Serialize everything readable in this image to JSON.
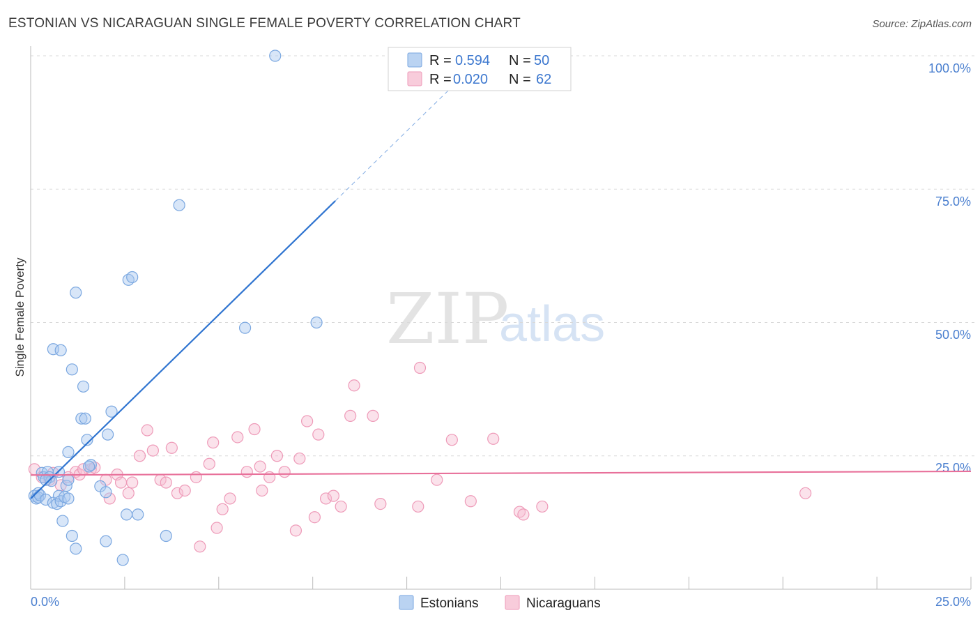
{
  "header": {
    "title": "ESTONIAN VS NICARAGUAN SINGLE FEMALE POVERTY CORRELATION CHART",
    "source": "Source: ZipAtlas.com"
  },
  "watermark": {
    "zip": "ZIP",
    "atlas": "atlas"
  },
  "legend_top": {
    "rows": [
      {
        "r_label": "R =",
        "r_value": "0.594",
        "n_label": "N =",
        "n_value": "50"
      },
      {
        "r_label": "R =",
        "r_value": "0.020",
        "n_label": "N =",
        "n_value": "62"
      }
    ]
  },
  "legend_bottom": {
    "items": [
      "Estonians",
      "Nicaraguans"
    ]
  },
  "colors": {
    "estonian_fill": "#a9c8ef",
    "estonian_stroke": "#7aa7e0",
    "estonian_line": "#2f74d0",
    "nicaraguan_fill": "#f6bfd2",
    "nicaraguan_stroke": "#ee9ab8",
    "nicaraguan_line": "#e8709a",
    "tick_text": "#4a7fcf",
    "grid": "#d9d9d9"
  },
  "chart_data": {
    "type": "scatter",
    "title": "ESTONIAN VS NICARAGUAN SINGLE FEMALE POVERTY CORRELATION CHART",
    "xlabel": "",
    "ylabel": "Single Female Poverty",
    "xlim": [
      0,
      25
    ],
    "ylim": [
      0,
      100
    ],
    "x_tick_labels": [
      "0.0%",
      "25.0%"
    ],
    "y_ticks": [
      25,
      50,
      75,
      100
    ],
    "y_tick_labels": [
      "25.0%",
      "50.0%",
      "75.0%",
      "100.0%"
    ],
    "grid": "horizontal dashed",
    "series": [
      {
        "name": "Estonians",
        "r": 0.594,
        "n": 50,
        "trend": {
          "x0": 0.0,
          "y0": 17.0,
          "x1": 8.1,
          "y1": 72.8,
          "dashed_to_x": 11.5
        },
        "points": [
          [
            0.1,
            17.5
          ],
          [
            0.15,
            17.0
          ],
          [
            0.2,
            18.0
          ],
          [
            0.2,
            17.2
          ],
          [
            0.25,
            17.6
          ],
          [
            0.3,
            21.8
          ],
          [
            0.35,
            21.0
          ],
          [
            0.4,
            16.8
          ],
          [
            0.45,
            22.0
          ],
          [
            0.5,
            21.0
          ],
          [
            0.55,
            20.3
          ],
          [
            0.6,
            16.2
          ],
          [
            0.7,
            16.0
          ],
          [
            0.75,
            17.5
          ],
          [
            0.8,
            16.5
          ],
          [
            0.85,
            12.8
          ],
          [
            0.9,
            17.3
          ],
          [
            0.95,
            19.4
          ],
          [
            1.0,
            20.5
          ],
          [
            1.0,
            25.7
          ],
          [
            1.1,
            10.0
          ],
          [
            1.2,
            7.6
          ],
          [
            1.2,
            55.6
          ],
          [
            1.1,
            41.2
          ],
          [
            1.4,
            38.0
          ],
          [
            1.5,
            28.0
          ],
          [
            1.35,
            32.0
          ],
          [
            1.45,
            32.0
          ],
          [
            0.6,
            45.0
          ],
          [
            0.8,
            44.8
          ],
          [
            1.6,
            23.3
          ],
          [
            1.85,
            19.3
          ],
          [
            2.0,
            18.2
          ],
          [
            2.0,
            9.0
          ],
          [
            2.05,
            29.0
          ],
          [
            2.15,
            33.3
          ],
          [
            2.45,
            5.5
          ],
          [
            2.55,
            14.0
          ],
          [
            2.6,
            58.0
          ],
          [
            2.7,
            58.5
          ],
          [
            2.85,
            14.0
          ],
          [
            3.6,
            10.0
          ],
          [
            3.95,
            72.0
          ],
          [
            5.7,
            49.0
          ],
          [
            6.5,
            100.0
          ],
          [
            7.6,
            50.0
          ],
          [
            1.55,
            23.0
          ],
          [
            0.4,
            20.5
          ],
          [
            0.75,
            22.0
          ],
          [
            1.0,
            17.0
          ]
        ]
      },
      {
        "name": "Nicaraguans",
        "r": 0.02,
        "n": 62,
        "trend": {
          "x0": 0.0,
          "y0": 21.4,
          "x1": 25.0,
          "y1": 22.1
        },
        "points": [
          [
            0.1,
            22.5
          ],
          [
            0.3,
            21.0
          ],
          [
            0.5,
            20.5
          ],
          [
            0.6,
            21.8
          ],
          [
            0.8,
            19.5
          ],
          [
            1.0,
            21.0
          ],
          [
            1.2,
            22.0
          ],
          [
            1.3,
            21.5
          ],
          [
            1.4,
            22.5
          ],
          [
            1.6,
            22.5
          ],
          [
            1.7,
            22.8
          ],
          [
            2.0,
            20.5
          ],
          [
            2.1,
            17.0
          ],
          [
            2.3,
            21.5
          ],
          [
            2.4,
            20.0
          ],
          [
            2.6,
            18.0
          ],
          [
            2.7,
            20.0
          ],
          [
            2.9,
            25.0
          ],
          [
            3.1,
            29.8
          ],
          [
            3.25,
            26.0
          ],
          [
            3.45,
            20.5
          ],
          [
            3.6,
            20.0
          ],
          [
            3.75,
            26.5
          ],
          [
            3.9,
            18.0
          ],
          [
            4.1,
            18.5
          ],
          [
            4.4,
            21.0
          ],
          [
            4.5,
            8.0
          ],
          [
            4.75,
            23.5
          ],
          [
            4.85,
            27.5
          ],
          [
            4.95,
            11.5
          ],
          [
            5.1,
            15.0
          ],
          [
            5.3,
            17.0
          ],
          [
            5.5,
            28.5
          ],
          [
            5.75,
            22.0
          ],
          [
            5.95,
            30.0
          ],
          [
            6.1,
            23.0
          ],
          [
            6.15,
            18.5
          ],
          [
            6.35,
            21.0
          ],
          [
            6.55,
            25.0
          ],
          [
            6.75,
            22.0
          ],
          [
            7.05,
            11.0
          ],
          [
            7.15,
            24.5
          ],
          [
            7.35,
            31.5
          ],
          [
            7.55,
            13.5
          ],
          [
            7.65,
            29.0
          ],
          [
            7.85,
            17.0
          ],
          [
            8.05,
            17.5
          ],
          [
            8.25,
            15.5
          ],
          [
            8.6,
            38.2
          ],
          [
            8.5,
            32.5
          ],
          [
            9.1,
            32.5
          ],
          [
            9.3,
            16.0
          ],
          [
            10.3,
            15.5
          ],
          [
            10.35,
            41.5
          ],
          [
            10.8,
            20.5
          ],
          [
            11.2,
            28.0
          ],
          [
            11.7,
            16.5
          ],
          [
            12.3,
            28.2
          ],
          [
            13.0,
            14.5
          ],
          [
            13.1,
            14.0
          ],
          [
            13.6,
            15.5
          ],
          [
            20.6,
            18.0
          ]
        ]
      }
    ]
  }
}
